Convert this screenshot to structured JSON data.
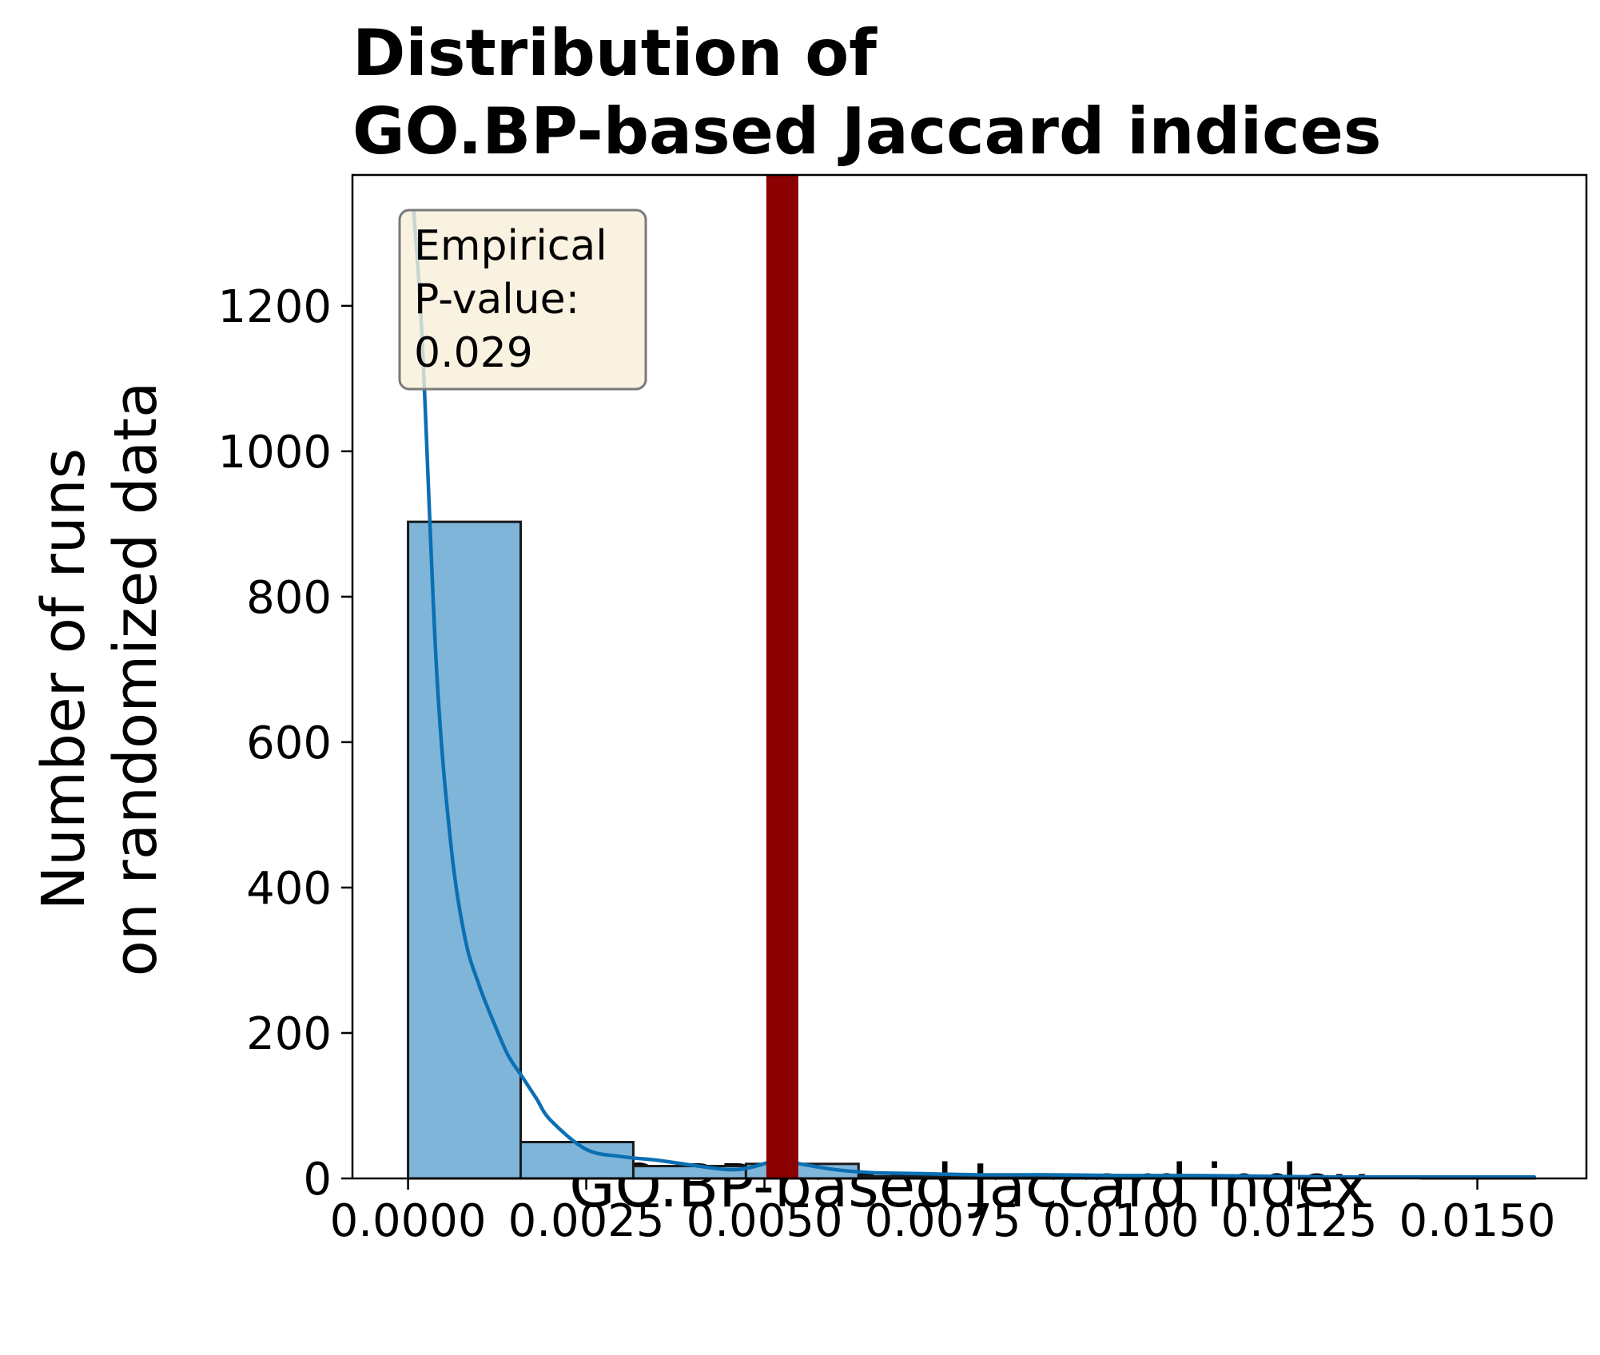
{
  "chart_data": {
    "type": "histogram",
    "title_lines": [
      "Distribution of",
      "GO.BP-based Jaccard indices"
    ],
    "xlabel": "GO.BP-based Jaccard index",
    "ylabel_lines": [
      "Number of runs",
      "on randomized data"
    ],
    "xlim": [
      -0.00078,
      0.01653
    ],
    "ylim": [
      0,
      1380
    ],
    "x_ticks": [
      0.0,
      0.0025,
      0.005,
      0.0075,
      0.01,
      0.0125,
      0.015
    ],
    "x_tick_labels": [
      "0.0000",
      "0.0025",
      "0.0050",
      "0.0075",
      "0.0100",
      "0.0125",
      "0.0150"
    ],
    "y_ticks": [
      0,
      200,
      400,
      600,
      800,
      1000,
      1200
    ],
    "y_tick_labels": [
      "0",
      "200",
      "400",
      "600",
      "800",
      "1000",
      "1200"
    ],
    "bins": [
      {
        "x0": 0.0,
        "x1": 0.00158,
        "count": 903
      },
      {
        "x0": 0.00158,
        "x1": 0.00316,
        "count": 50
      },
      {
        "x0": 0.00316,
        "x1": 0.00474,
        "count": 17
      },
      {
        "x0": 0.00474,
        "x1": 0.00632,
        "count": 20
      },
      {
        "x0": 0.00632,
        "x1": 0.0079,
        "count": 3
      },
      {
        "x0": 0.0079,
        "x1": 0.00948,
        "count": 2
      },
      {
        "x0": 0.00948,
        "x1": 0.01106,
        "count": 2
      },
      {
        "x0": 0.01106,
        "x1": 0.01264,
        "count": 1
      },
      {
        "x0": 0.01264,
        "x1": 0.01422,
        "count": 0
      },
      {
        "x0": 0.01422,
        "x1": 0.0158,
        "count": 1
      }
    ],
    "kde": {
      "x": [
        8e-05,
        0.0002,
        0.0004,
        0.0006,
        0.0008,
        0.001,
        0.0012,
        0.0014,
        0.0016,
        0.0018,
        0.002,
        0.0025,
        0.003,
        0.0035,
        0.004,
        0.0045,
        0.0048,
        0.0052,
        0.0055,
        0.006,
        0.0065,
        0.007,
        0.008,
        0.009,
        0.01,
        0.011,
        0.012,
        0.013,
        0.014,
        0.015,
        0.0158
      ],
      "y": [
        1330,
        1150,
        700,
        460,
        330,
        265,
        215,
        170,
        140,
        110,
        80,
        40,
        30,
        25,
        18,
        12,
        15,
        25,
        20,
        12,
        8,
        7,
        5,
        5,
        4,
        4,
        3,
        2,
        2,
        2,
        2
      ]
    },
    "observed_value": 0.00525,
    "colors": {
      "bar_fill": "#7fb5d9",
      "bar_edge": "#1a1a1a",
      "kde_line": "#0a6fb3",
      "observed_line": "#8b0000",
      "annotation_box": "#f8efd9",
      "annotation_border": "#7a7a7a"
    },
    "annotation": {
      "lines": [
        "Empirical",
        "P-value:",
        "0.029"
      ]
    },
    "grid": false,
    "legend": "none"
  }
}
